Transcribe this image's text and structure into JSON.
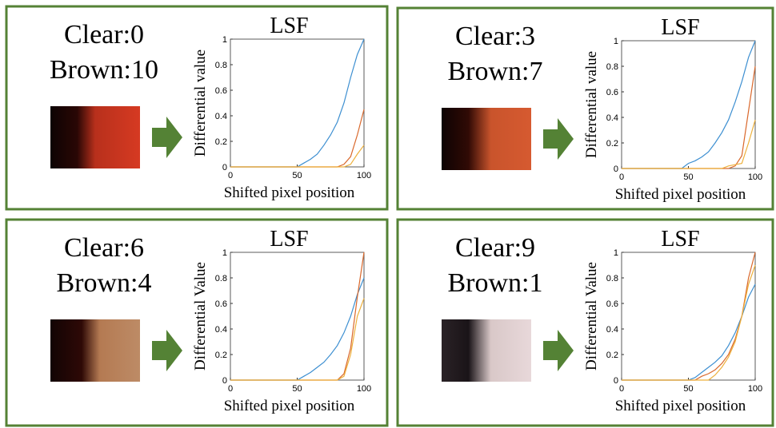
{
  "chart_data": [
    {
      "type": "line",
      "annotations": [
        "Clear:0",
        "Brown:10"
      ],
      "title": "LSF",
      "xlabel": "Shifted pixel position",
      "ylabel": "Differential value",
      "x": [
        0,
        5,
        10,
        15,
        20,
        25,
        30,
        35,
        40,
        45,
        50,
        55,
        60,
        65,
        70,
        75,
        80,
        85,
        90,
        95,
        100
      ],
      "xlim": [
        0,
        100
      ],
      "xticks": [
        0,
        50,
        100
      ],
      "ylim": [
        0,
        1
      ],
      "yticks": [
        0,
        0.2,
        0.4,
        0.6,
        0.8,
        1
      ],
      "series": [
        {
          "color": "#3d8fd1",
          "values": [
            0,
            0,
            0,
            0,
            0,
            0,
            0,
            0,
            0,
            0,
            0,
            0.03,
            0.06,
            0.1,
            0.17,
            0.25,
            0.35,
            0.5,
            0.7,
            0.88,
            1.0
          ]
        },
        {
          "color": "#d9682c",
          "values": [
            0,
            0,
            0,
            0,
            0,
            0,
            0,
            0,
            0,
            0,
            0,
            0,
            0,
            0,
            0,
            0,
            0,
            0.02,
            0.08,
            0.25,
            0.45
          ]
        },
        {
          "color": "#edb03c",
          "values": [
            0,
            0,
            0,
            0,
            0,
            0,
            0,
            0,
            0,
            0,
            0,
            0,
            0,
            0,
            0,
            0,
            0,
            0,
            0.02,
            0.1,
            0.17
          ]
        }
      ]
    },
    {
      "type": "line",
      "annotations": [
        "Clear:3",
        "Brown:7"
      ],
      "title": "LSF",
      "xlabel": "Shifted pixel position",
      "ylabel": "Differential value",
      "x": [
        0,
        5,
        10,
        15,
        20,
        25,
        30,
        35,
        40,
        45,
        50,
        55,
        60,
        65,
        70,
        75,
        80,
        85,
        90,
        95,
        100
      ],
      "xlim": [
        0,
        100
      ],
      "xticks": [
        0,
        50,
        100
      ],
      "ylim": [
        0,
        1
      ],
      "yticks": [
        0,
        0.2,
        0.4,
        0.6,
        0.8,
        1
      ],
      "series": [
        {
          "color": "#3d8fd1",
          "values": [
            0,
            0,
            0,
            0,
            0,
            0,
            0,
            0,
            0,
            0,
            0.04,
            0.06,
            0.09,
            0.13,
            0.2,
            0.28,
            0.38,
            0.52,
            0.68,
            0.87,
            1.0
          ]
        },
        {
          "color": "#d9682c",
          "values": [
            0,
            0,
            0,
            0,
            0,
            0,
            0,
            0,
            0,
            0,
            0,
            0,
            0,
            0,
            0,
            0,
            0,
            0.02,
            0.1,
            0.45,
            0.8
          ]
        },
        {
          "color": "#edb03c",
          "values": [
            0,
            0,
            0,
            0,
            0,
            0,
            0,
            0,
            0,
            0,
            0,
            0,
            0,
            0,
            0,
            0,
            0.02,
            0.03,
            0.04,
            0.2,
            0.38
          ]
        }
      ]
    },
    {
      "type": "line",
      "annotations": [
        "Clear:6",
        "Brown:4"
      ],
      "title": "LSF",
      "xlabel": "Shifted pixel position",
      "ylabel": "Differential Value",
      "x": [
        0,
        5,
        10,
        15,
        20,
        25,
        30,
        35,
        40,
        45,
        50,
        55,
        60,
        65,
        70,
        75,
        80,
        85,
        90,
        95,
        100
      ],
      "xlim": [
        0,
        100
      ],
      "xticks": [
        0,
        50,
        100
      ],
      "ylim": [
        0,
        1
      ],
      "yticks": [
        0,
        0.2,
        0.4,
        0.6,
        0.8,
        1
      ],
      "series": [
        {
          "color": "#3d8fd1",
          "values": [
            0,
            0,
            0,
            0,
            0,
            0,
            0,
            0,
            0,
            0,
            0,
            0.03,
            0.06,
            0.1,
            0.14,
            0.2,
            0.27,
            0.37,
            0.5,
            0.67,
            0.8
          ]
        },
        {
          "color": "#d9682c",
          "values": [
            0,
            0,
            0,
            0,
            0,
            0,
            0,
            0,
            0,
            0,
            0,
            0,
            0,
            0,
            0,
            0,
            0,
            0.05,
            0.25,
            0.65,
            1.0
          ]
        },
        {
          "color": "#edb03c",
          "values": [
            0,
            0,
            0,
            0,
            0,
            0,
            0,
            0,
            0,
            0,
            0,
            0,
            0,
            0,
            0,
            0,
            0,
            0.03,
            0.2,
            0.5,
            0.64
          ]
        }
      ]
    },
    {
      "type": "line",
      "annotations": [
        "Clear:9",
        "Brown:1"
      ],
      "title": "LSF",
      "xlabel": "Shifted pixel position",
      "ylabel": "Differential Value",
      "x": [
        0,
        5,
        10,
        15,
        20,
        25,
        30,
        35,
        40,
        45,
        50,
        55,
        60,
        65,
        70,
        75,
        80,
        85,
        90,
        95,
        100
      ],
      "xlim": [
        0,
        100
      ],
      "xticks": [
        0,
        50,
        100
      ],
      "ylim": [
        0,
        1
      ],
      "yticks": [
        0,
        0.2,
        0.4,
        0.6,
        0.8,
        1
      ],
      "series": [
        {
          "color": "#3d8fd1",
          "values": [
            0,
            0,
            0,
            0,
            0,
            0,
            0,
            0,
            0,
            0,
            0,
            0.02,
            0.06,
            0.1,
            0.14,
            0.19,
            0.27,
            0.37,
            0.5,
            0.65,
            0.75
          ]
        },
        {
          "color": "#d9682c",
          "values": [
            0,
            0,
            0,
            0,
            0,
            0,
            0,
            0,
            0,
            0,
            0,
            0,
            0.03,
            0.05,
            0.08,
            0.13,
            0.2,
            0.32,
            0.5,
            0.8,
            1.0
          ]
        },
        {
          "color": "#edb03c",
          "values": [
            0,
            0,
            0,
            0,
            0,
            0,
            0,
            0,
            0,
            0,
            0,
            0,
            0,
            0,
            0.04,
            0.1,
            0.18,
            0.3,
            0.5,
            0.75,
            0.9
          ]
        }
      ]
    }
  ]
}
